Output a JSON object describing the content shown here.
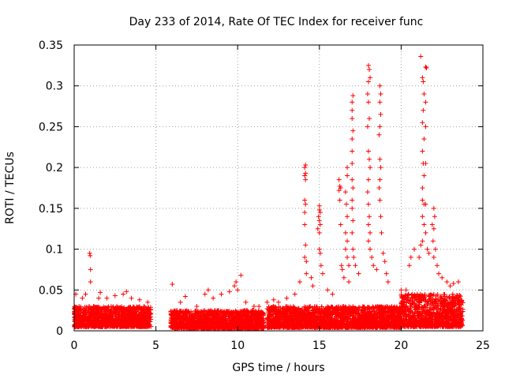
{
  "chart_data": {
    "type": "scatter",
    "title": "Day 233 of 2014, Rate Of TEC Index for receiver func",
    "xlabel": "GPS time / hours",
    "ylabel": "ROTI / TECUs",
    "xlim": [
      0,
      25
    ],
    "ylim": [
      0,
      0.35
    ],
    "xticks": [
      0,
      5,
      10,
      15,
      20,
      25
    ],
    "xtick_labels": [
      "0",
      "5",
      "10",
      "15",
      "20",
      "25"
    ],
    "yticks": [
      0,
      0.05,
      0.1,
      0.15,
      0.2,
      0.25,
      0.3,
      0.35
    ],
    "ytick_labels": [
      "0",
      "0.05",
      "0.1",
      "0.15",
      "0.2",
      "0.25",
      "0.3",
      "0.35"
    ],
    "grid": true,
    "marker": "+",
    "color": "#ff0000",
    "series": [
      {
        "name": "ROTI",
        "points": [
          [
            0.1,
            0.045
          ],
          [
            0.3,
            0.03
          ],
          [
            0.5,
            0.04
          ],
          [
            0.7,
            0.045
          ],
          [
            0.9,
            0.02
          ],
          [
            0.95,
            0.095
          ],
          [
            0.98,
            0.092
          ],
          [
            1.0,
            0.075
          ],
          [
            1.0,
            0.06
          ],
          [
            1.2,
            0.03
          ],
          [
            1.5,
            0.04
          ],
          [
            1.6,
            0.047
          ],
          [
            2.0,
            0.04
          ],
          [
            2.5,
            0.043
          ],
          [
            3.0,
            0.045
          ],
          [
            3.2,
            0.048
          ],
          [
            3.5,
            0.04
          ],
          [
            4.0,
            0.038
          ],
          [
            4.5,
            0.035
          ],
          [
            6.0,
            0.057
          ],
          [
            6.5,
            0.035
          ],
          [
            6.8,
            0.042
          ],
          [
            7.5,
            0.03
          ],
          [
            8.0,
            0.045
          ],
          [
            8.2,
            0.05
          ],
          [
            8.5,
            0.04
          ],
          [
            9.0,
            0.045
          ],
          [
            9.5,
            0.048
          ],
          [
            9.8,
            0.055
          ],
          [
            9.9,
            0.06
          ],
          [
            10.0,
            0.05
          ],
          [
            10.2,
            0.068
          ],
          [
            10.5,
            0.035
          ],
          [
            11.0,
            0.03
          ],
          [
            11.3,
            0.03
          ],
          [
            11.8,
            0.035
          ],
          [
            12.2,
            0.038
          ],
          [
            12.5,
            0.035
          ],
          [
            13.0,
            0.04
          ],
          [
            13.5,
            0.045
          ],
          [
            13.8,
            0.06
          ],
          [
            14.1,
            0.2
          ],
          [
            14.15,
            0.203
          ],
          [
            14.15,
            0.193
          ],
          [
            14.1,
            0.19
          ],
          [
            14.15,
            0.185
          ],
          [
            14.1,
            0.16
          ],
          [
            14.15,
            0.155
          ],
          [
            14.1,
            0.145
          ],
          [
            14.1,
            0.13
          ],
          [
            14.15,
            0.105
          ],
          [
            14.1,
            0.09
          ],
          [
            14.2,
            0.085
          ],
          [
            14.2,
            0.07
          ],
          [
            14.5,
            0.065
          ],
          [
            14.6,
            0.055
          ],
          [
            14.9,
            0.125
          ],
          [
            15.0,
            0.148
          ],
          [
            15.0,
            0.153
          ],
          [
            15.05,
            0.145
          ],
          [
            14.95,
            0.14
          ],
          [
            15.0,
            0.135
          ],
          [
            15.05,
            0.13
          ],
          [
            15.0,
            0.12
          ],
          [
            15.0,
            0.1
          ],
          [
            15.05,
            0.095
          ],
          [
            15.1,
            0.08
          ],
          [
            15.2,
            0.07
          ],
          [
            15.5,
            0.05
          ],
          [
            15.8,
            0.045
          ],
          [
            16.2,
            0.185
          ],
          [
            16.25,
            0.177
          ],
          [
            16.2,
            0.172
          ],
          [
            16.3,
            0.175
          ],
          [
            16.25,
            0.16
          ],
          [
            16.3,
            0.13
          ],
          [
            16.35,
            0.08
          ],
          [
            16.4,
            0.075
          ],
          [
            16.5,
            0.065
          ],
          [
            16.6,
            0.1
          ],
          [
            16.7,
            0.2
          ],
          [
            16.7,
            0.19
          ],
          [
            16.6,
            0.17
          ],
          [
            16.65,
            0.155
          ],
          [
            16.7,
            0.14
          ],
          [
            16.6,
            0.12
          ],
          [
            16.7,
            0.11
          ],
          [
            16.7,
            0.09
          ],
          [
            16.8,
            0.08
          ],
          [
            16.8,
            0.06
          ],
          [
            17.0,
            0.28
          ],
          [
            17.05,
            0.288
          ],
          [
            17.0,
            0.27
          ],
          [
            17.0,
            0.26
          ],
          [
            17.05,
            0.245
          ],
          [
            17.0,
            0.235
          ],
          [
            17.0,
            0.22
          ],
          [
            17.0,
            0.205
          ],
          [
            17.0,
            0.185
          ],
          [
            17.05,
            0.175
          ],
          [
            17.0,
            0.16
          ],
          [
            17.0,
            0.15
          ],
          [
            17.05,
            0.135
          ],
          [
            17.0,
            0.12
          ],
          [
            17.05,
            0.1
          ],
          [
            17.1,
            0.09
          ],
          [
            17.2,
            0.08
          ],
          [
            17.4,
            0.07
          ],
          [
            18.0,
            0.325
          ],
          [
            18.05,
            0.32
          ],
          [
            18.1,
            0.31
          ],
          [
            18.0,
            0.305
          ],
          [
            17.95,
            0.29
          ],
          [
            18.0,
            0.28
          ],
          [
            18.05,
            0.26
          ],
          [
            17.95,
            0.25
          ],
          [
            18.0,
            0.22
          ],
          [
            18.05,
            0.21
          ],
          [
            18.1,
            0.2
          ],
          [
            18.0,
            0.185
          ],
          [
            17.95,
            0.17
          ],
          [
            18.0,
            0.155
          ],
          [
            18.05,
            0.14
          ],
          [
            18.0,
            0.13
          ],
          [
            18.1,
            0.12
          ],
          [
            18.0,
            0.11
          ],
          [
            18.1,
            0.1
          ],
          [
            18.2,
            0.09
          ],
          [
            18.3,
            0.08
          ],
          [
            18.5,
            0.075
          ],
          [
            18.7,
            0.3
          ],
          [
            18.75,
            0.29
          ],
          [
            18.7,
            0.28
          ],
          [
            18.75,
            0.265
          ],
          [
            18.7,
            0.25
          ],
          [
            18.65,
            0.24
          ],
          [
            18.7,
            0.21
          ],
          [
            18.75,
            0.2
          ],
          [
            18.7,
            0.185
          ],
          [
            18.65,
            0.175
          ],
          [
            18.7,
            0.16
          ],
          [
            18.75,
            0.14
          ],
          [
            18.8,
            0.12
          ],
          [
            18.9,
            0.095
          ],
          [
            19.0,
            0.085
          ],
          [
            19.1,
            0.07
          ],
          [
            19.2,
            0.06
          ],
          [
            20.0,
            0.05
          ],
          [
            20.3,
            0.05
          ],
          [
            20.5,
            0.08
          ],
          [
            20.6,
            0.09
          ],
          [
            20.8,
            0.1
          ],
          [
            21.2,
            0.336
          ],
          [
            21.3,
            0.31
          ],
          [
            21.35,
            0.305
          ],
          [
            21.5,
            0.323
          ],
          [
            21.55,
            0.322
          ],
          [
            21.4,
            0.29
          ],
          [
            21.5,
            0.28
          ],
          [
            21.35,
            0.27
          ],
          [
            21.3,
            0.255
          ],
          [
            21.5,
            0.25
          ],
          [
            21.4,
            0.235
          ],
          [
            21.3,
            0.22
          ],
          [
            21.35,
            0.205
          ],
          [
            21.5,
            0.205
          ],
          [
            21.4,
            0.19
          ],
          [
            21.3,
            0.175
          ],
          [
            21.3,
            0.16
          ],
          [
            21.4,
            0.155
          ],
          [
            21.5,
            0.155
          ],
          [
            21.3,
            0.14
          ],
          [
            21.4,
            0.13
          ],
          [
            21.5,
            0.12
          ],
          [
            21.3,
            0.11
          ],
          [
            21.6,
            0.1
          ],
          [
            21.7,
            0.095
          ],
          [
            21.2,
            0.105
          ],
          [
            21.1,
            0.09
          ],
          [
            22.0,
            0.15
          ],
          [
            22.05,
            0.14
          ],
          [
            21.9,
            0.13
          ],
          [
            22.0,
            0.125
          ],
          [
            21.95,
            0.11
          ],
          [
            22.1,
            0.1
          ],
          [
            22.0,
            0.09
          ],
          [
            22.2,
            0.08
          ],
          [
            22.3,
            0.07
          ],
          [
            22.5,
            0.065
          ],
          [
            22.8,
            0.06
          ],
          [
            23.0,
            0.055
          ],
          [
            23.2,
            0.058
          ],
          [
            23.5,
            0.06
          ]
        ]
      }
    ],
    "dense_band": [
      {
        "x0": 0.0,
        "x1": 4.7,
        "y0": 0.005,
        "y1": 0.03
      },
      {
        "x0": 5.9,
        "x1": 11.6,
        "y0": 0.003,
        "y1": 0.025
      },
      {
        "x0": 11.8,
        "x1": 20.0,
        "y0": 0.004,
        "y1": 0.03
      },
      {
        "x0": 20.0,
        "x1": 23.8,
        "y0": 0.005,
        "y1": 0.045
      }
    ]
  }
}
